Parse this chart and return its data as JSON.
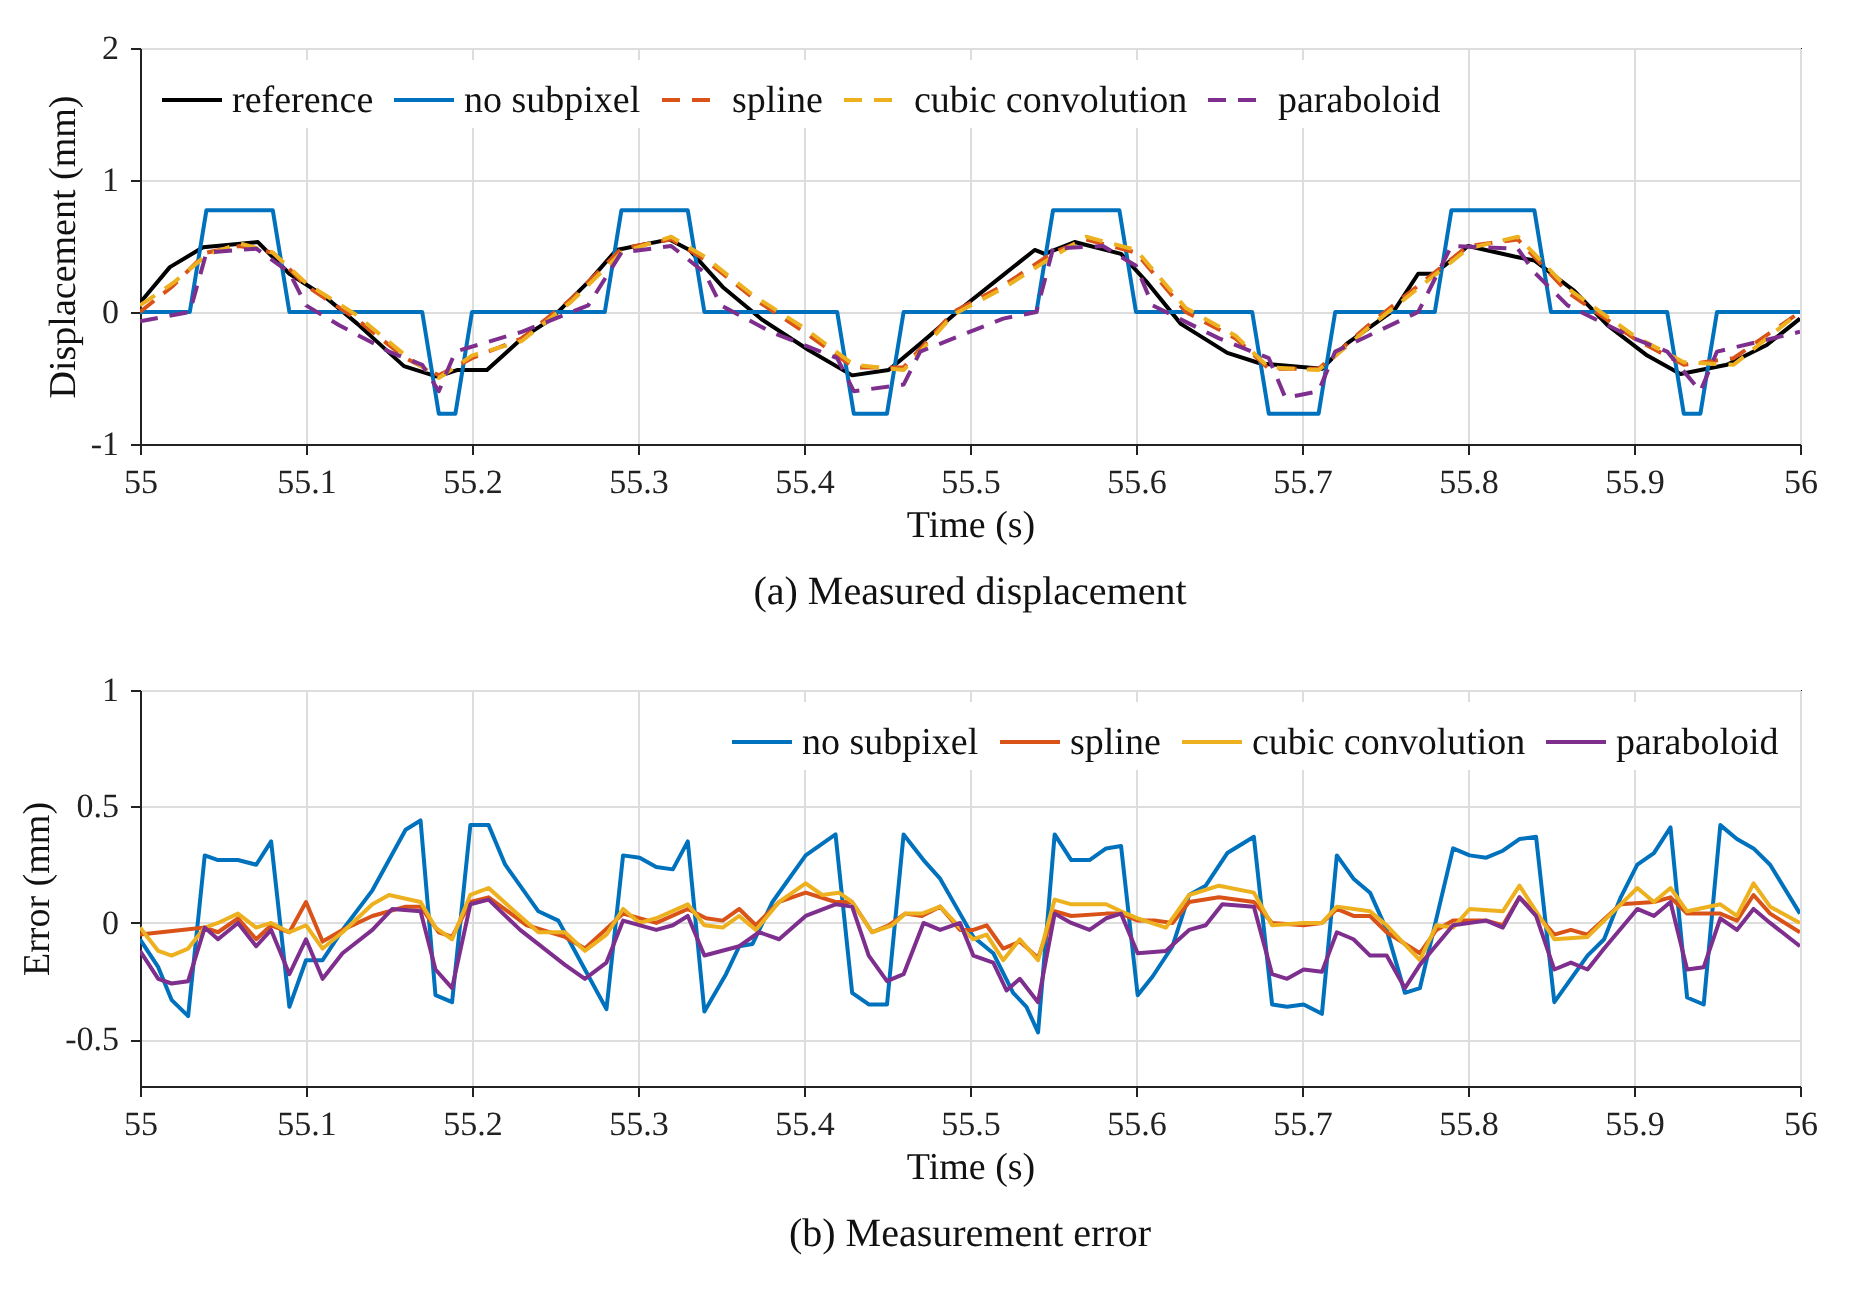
{
  "chart_data": [
    {
      "type": "line",
      "title": "(a) Measured displacement",
      "xlabel": "Time (s)",
      "ylabel": "Displacement (mm)",
      "xlim": [
        55,
        56
      ],
      "ylim": [
        -1,
        2
      ],
      "xticks": [
        55,
        55.1,
        55.2,
        55.3,
        55.4,
        55.5,
        55.6,
        55.7,
        55.8,
        55.9,
        56
      ],
      "yticks": [
        -1,
        0,
        1,
        2
      ],
      "grid": true,
      "legend": "top",
      "series": [
        {
          "name": "reference",
          "color": "#000000",
          "line_style": "solid",
          "x": [
            55,
            55.018,
            55.038,
            55.071,
            55.09,
            55.111,
            55.131,
            55.159,
            55.179,
            55.191,
            55.209,
            55.231,
            55.247,
            55.271,
            55.287,
            55.319,
            55.331,
            55.351,
            55.375,
            55.403,
            55.429,
            55.451,
            55.471,
            55.495,
            55.519,
            55.539,
            55.545,
            55.563,
            55.591,
            55.607,
            55.627,
            55.655,
            55.675,
            55.712,
            55.727,
            55.756,
            55.77,
            55.78,
            55.8,
            55.828,
            55.84,
            55.864,
            55.884,
            55.908,
            55.928,
            55.956,
            55.98,
            56
          ],
          "values": [
            0.07,
            0.34,
            0.49,
            0.53,
            0.29,
            0.12,
            -0.09,
            -0.41,
            -0.49,
            -0.44,
            -0.44,
            -0.19,
            -0.06,
            0.24,
            0.47,
            0.55,
            0.47,
            0.19,
            -0.06,
            -0.29,
            -0.48,
            -0.44,
            -0.23,
            0.03,
            0.27,
            0.47,
            0.44,
            0.53,
            0.44,
            0.22,
            -0.09,
            -0.31,
            -0.39,
            -0.43,
            -0.24,
            0.02,
            0.29,
            0.29,
            0.5,
            0.42,
            0.39,
            0.16,
            -0.1,
            -0.33,
            -0.47,
            -0.4,
            -0.25,
            -0.05
          ]
        },
        {
          "name": "no subpixel",
          "color": "#0072bd",
          "line_style": "solid",
          "x": [
            55,
            55.03,
            55.04,
            55.08,
            55.09,
            55.17,
            55.18,
            55.19,
            55.2,
            55.28,
            55.29,
            55.33,
            55.34,
            55.42,
            55.43,
            55.45,
            55.46,
            55.54,
            55.55,
            55.59,
            55.6,
            55.67,
            55.68,
            55.71,
            55.72,
            55.78,
            55.79,
            55.84,
            55.85,
            55.92,
            55.93,
            55.94,
            55.95,
            56
          ],
          "values": [
            0,
            0,
            0.77,
            0.77,
            0,
            0,
            -0.77,
            -0.77,
            0,
            0,
            0.77,
            0.77,
            0,
            0,
            -0.77,
            -0.77,
            0,
            0,
            0.77,
            0.77,
            0,
            0,
            -0.77,
            -0.77,
            0,
            0,
            0.77,
            0.77,
            0,
            0,
            -0.77,
            -0.77,
            0,
            0
          ]
        },
        {
          "name": "spline",
          "color": "#d95319",
          "line_style": "dashed",
          "x": [
            55,
            55.02,
            55.04,
            55.06,
            55.08,
            55.1,
            55.13,
            55.16,
            55.18,
            55.2,
            55.23,
            55.26,
            55.29,
            55.32,
            55.34,
            55.37,
            55.4,
            55.43,
            55.46,
            55.49,
            55.52,
            55.55,
            55.57,
            55.6,
            55.63,
            55.66,
            55.68,
            55.71,
            55.74,
            55.77,
            55.8,
            55.83,
            55.86,
            55.9,
            55.93,
            55.96,
            56
          ],
          "values": [
            0.0,
            0.2,
            0.45,
            0.5,
            0.45,
            0.2,
            -0.05,
            -0.35,
            -0.48,
            -0.35,
            -0.2,
            0.1,
            0.48,
            0.55,
            0.4,
            0.1,
            -0.15,
            -0.42,
            -0.42,
            0.0,
            0.2,
            0.45,
            0.55,
            0.45,
            0.0,
            -0.2,
            -0.43,
            -0.43,
            -0.1,
            0.2,
            0.5,
            0.55,
            0.15,
            -0.2,
            -0.4,
            -0.35,
            0.0
          ]
        },
        {
          "name": "cubic convolution",
          "color": "#edb120",
          "line_style": "dashed",
          "x": [
            55,
            55.02,
            55.04,
            55.06,
            55.08,
            55.1,
            55.13,
            55.16,
            55.18,
            55.2,
            55.23,
            55.26,
            55.29,
            55.32,
            55.34,
            55.37,
            55.4,
            55.43,
            55.46,
            55.49,
            55.52,
            55.55,
            55.57,
            55.6,
            55.63,
            55.66,
            55.68,
            55.71,
            55.74,
            55.77,
            55.8,
            55.83,
            55.86,
            55.9,
            55.93,
            55.96,
            56
          ],
          "values": [
            0.05,
            0.22,
            0.43,
            0.52,
            0.45,
            0.22,
            -0.02,
            -0.33,
            -0.5,
            -0.33,
            -0.22,
            0.08,
            0.45,
            0.57,
            0.42,
            0.12,
            -0.12,
            -0.4,
            -0.44,
            -0.02,
            0.18,
            0.42,
            0.57,
            0.47,
            0.03,
            -0.18,
            -0.42,
            -0.44,
            -0.12,
            0.18,
            0.48,
            0.57,
            0.18,
            -0.18,
            -0.38,
            -0.4,
            0.0
          ]
        },
        {
          "name": "paraboloid",
          "color": "#7e2f8e",
          "line_style": "dashed",
          "x": [
            55,
            55.03,
            55.04,
            55.07,
            55.09,
            55.1,
            55.12,
            55.15,
            55.17,
            55.18,
            55.19,
            55.23,
            55.27,
            55.29,
            55.32,
            55.34,
            55.35,
            55.38,
            55.42,
            55.43,
            55.46,
            55.47,
            55.52,
            55.54,
            55.55,
            55.58,
            55.6,
            55.61,
            55.65,
            55.68,
            55.69,
            55.71,
            55.72,
            55.77,
            55.79,
            55.83,
            55.84,
            55.86,
            55.9,
            55.92,
            55.94,
            55.95,
            56
          ],
          "values": [
            -0.07,
            0.0,
            0.45,
            0.48,
            0.3,
            0.05,
            -0.1,
            -0.3,
            -0.4,
            -0.6,
            -0.3,
            -0.15,
            0.05,
            0.45,
            0.5,
            0.3,
            0.05,
            -0.15,
            -0.35,
            -0.6,
            -0.55,
            -0.3,
            -0.05,
            0.0,
            0.48,
            0.5,
            0.35,
            0.05,
            -0.2,
            -0.35,
            -0.65,
            -0.6,
            -0.3,
            0.0,
            0.5,
            0.48,
            0.3,
            0.05,
            -0.2,
            -0.3,
            -0.6,
            -0.3,
            -0.15
          ]
        }
      ]
    },
    {
      "type": "line",
      "title": "(b) Measurement error",
      "xlabel": "Time (s)",
      "ylabel": "Error (mm)",
      "xlim": [
        55,
        56
      ],
      "ylim": [
        -0.7,
        1
      ],
      "xticks": [
        55,
        55.1,
        55.2,
        55.3,
        55.4,
        55.5,
        55.6,
        55.7,
        55.8,
        55.9,
        56
      ],
      "yticks": [
        -0.5,
        0,
        0.5,
        1
      ],
      "grid": true,
      "legend": "top right",
      "series": [
        {
          "name": "no subpixel",
          "color": "#0072bd",
          "x": [
            55,
            55.011,
            55.019,
            55.029,
            55.039,
            55.047,
            55.059,
            55.07,
            55.079,
            55.09,
            55.1,
            55.11,
            55.122,
            55.14,
            55.16,
            55.169,
            55.178,
            55.188,
            55.199,
            55.21,
            55.22,
            55.24,
            55.252,
            55.265,
            55.281,
            55.291,
            55.301,
            55.311,
            55.321,
            55.33,
            55.34,
            55.353,
            55.361,
            55.369,
            55.381,
            55.401,
            55.419,
            55.429,
            55.439,
            55.45,
            55.46,
            55.472,
            55.482,
            55.494,
            55.502,
            55.514,
            55.526,
            55.534,
            55.541,
            55.551,
            55.561,
            55.572,
            55.582,
            55.591,
            55.601,
            55.61,
            55.622,
            55.632,
            55.642,
            55.655,
            55.671,
            55.682,
            55.691,
            55.701,
            55.712,
            55.721,
            55.731,
            55.741,
            55.751,
            55.762,
            55.771,
            55.791,
            55.801,
            55.811,
            55.821,
            55.831,
            55.841,
            55.852,
            55.862,
            55.872,
            55.882,
            55.892,
            55.902,
            55.912,
            55.922,
            55.932,
            55.942,
            55.952,
            55.962,
            55.972,
            55.982,
            56
          ],
          "values": [
            -0.07,
            -0.19,
            -0.33,
            -0.4,
            0.29,
            0.27,
            0.27,
            0.25,
            0.35,
            -0.36,
            -0.16,
            -0.16,
            -0.03,
            0.14,
            0.4,
            0.44,
            -0.31,
            -0.34,
            0.42,
            0.42,
            0.25,
            0.05,
            0.01,
            -0.16,
            -0.37,
            0.29,
            0.28,
            0.24,
            0.23,
            0.35,
            -0.38,
            -0.22,
            -0.1,
            -0.09,
            0.09,
            0.29,
            0.38,
            -0.3,
            -0.35,
            -0.35,
            0.38,
            0.27,
            0.19,
            0.04,
            -0.06,
            -0.13,
            -0.3,
            -0.36,
            -0.47,
            0.38,
            0.27,
            0.27,
            0.32,
            0.33,
            -0.31,
            -0.23,
            -0.1,
            0.12,
            0.16,
            0.3,
            0.37,
            -0.35,
            -0.36,
            -0.35,
            -0.39,
            0.29,
            0.19,
            0.13,
            -0.03,
            -0.3,
            -0.28,
            0.32,
            0.29,
            0.28,
            0.31,
            0.36,
            0.37,
            -0.34,
            -0.24,
            -0.14,
            -0.07,
            0.11,
            0.25,
            0.3,
            0.41,
            -0.32,
            -0.35,
            0.42,
            0.36,
            0.32,
            0.25,
            0.04
          ]
        },
        {
          "name": "spline",
          "color": "#d95319",
          "x": [
            55,
            55.039,
            55.047,
            55.059,
            55.07,
            55.079,
            55.09,
            55.1,
            55.11,
            55.122,
            55.14,
            55.16,
            55.169,
            55.18,
            55.188,
            55.199,
            55.21,
            55.233,
            55.256,
            55.268,
            55.291,
            55.311,
            55.33,
            55.341,
            55.351,
            55.361,
            55.371,
            55.385,
            55.401,
            55.419,
            55.429,
            55.441,
            55.451,
            55.461,
            55.471,
            55.482,
            55.494,
            55.502,
            55.51,
            55.52,
            55.53,
            55.541,
            55.551,
            55.561,
            55.582,
            55.591,
            55.601,
            55.612,
            55.622,
            55.632,
            55.65,
            55.671,
            55.682,
            55.701,
            55.712,
            55.721,
            55.731,
            55.741,
            55.751,
            55.771,
            55.781,
            55.791,
            55.811,
            55.821,
            55.831,
            55.841,
            55.852,
            55.862,
            55.872,
            55.892,
            55.912,
            55.922,
            55.932,
            55.952,
            55.962,
            55.972,
            55.982,
            56
          ],
          "values": [
            -0.05,
            -0.02,
            -0.04,
            0.02,
            -0.07,
            -0.01,
            -0.04,
            0.09,
            -0.08,
            -0.03,
            0.03,
            0.07,
            0.07,
            -0.04,
            -0.06,
            0.09,
            0.11,
            -0.01,
            -0.06,
            -0.11,
            0.04,
            0.0,
            0.06,
            0.02,
            0.01,
            0.06,
            -0.01,
            0.09,
            0.13,
            0.09,
            0.09,
            -0.04,
            -0.01,
            0.04,
            0.03,
            0.07,
            -0.03,
            -0.03,
            -0.01,
            -0.11,
            -0.08,
            -0.15,
            0.05,
            0.03,
            0.04,
            0.04,
            0.01,
            0.01,
            0.0,
            0.09,
            0.11,
            0.09,
            0.0,
            -0.01,
            0.0,
            0.06,
            0.03,
            0.03,
            -0.04,
            -0.13,
            -0.03,
            0.01,
            0.01,
            -0.01,
            0.11,
            0.04,
            -0.05,
            -0.03,
            -0.05,
            0.08,
            0.09,
            0.11,
            0.04,
            0.04,
            0.01,
            0.12,
            0.04,
            -0.04
          ]
        },
        {
          "name": "cubic convolution",
          "color": "#edb120",
          "x": [
            55,
            55.011,
            55.019,
            55.029,
            55.039,
            55.047,
            55.059,
            55.07,
            55.079,
            55.09,
            55.1,
            55.11,
            55.122,
            55.14,
            55.15,
            55.169,
            55.178,
            55.188,
            55.199,
            55.21,
            55.224,
            55.24,
            55.256,
            55.268,
            55.281,
            55.291,
            55.301,
            55.311,
            55.33,
            55.34,
            55.351,
            55.361,
            55.371,
            55.385,
            55.401,
            55.411,
            55.421,
            55.429,
            55.441,
            55.453,
            55.461,
            55.471,
            55.482,
            55.494,
            55.502,
            55.51,
            55.52,
            55.53,
            55.541,
            55.551,
            55.561,
            55.582,
            55.591,
            55.601,
            55.618,
            55.632,
            55.65,
            55.671,
            55.682,
            55.701,
            55.712,
            55.721,
            55.741,
            55.751,
            55.771,
            55.781,
            55.791,
            55.801,
            55.821,
            55.831,
            55.841,
            55.852,
            55.872,
            55.892,
            55.902,
            55.912,
            55.922,
            55.932,
            55.952,
            55.962,
            55.972,
            55.982,
            56
          ],
          "values": [
            -0.02,
            -0.12,
            -0.14,
            -0.11,
            -0.02,
            0.0,
            0.04,
            -0.02,
            0.0,
            -0.04,
            -0.01,
            -0.11,
            -0.04,
            0.08,
            0.12,
            0.09,
            -0.02,
            -0.07,
            0.12,
            0.15,
            0.06,
            -0.04,
            -0.04,
            -0.12,
            -0.05,
            0.06,
            0.0,
            0.02,
            0.08,
            -0.01,
            -0.02,
            0.03,
            -0.03,
            0.09,
            0.17,
            0.12,
            0.13,
            0.09,
            -0.04,
            -0.01,
            0.04,
            0.04,
            0.07,
            -0.02,
            -0.07,
            -0.05,
            -0.16,
            -0.07,
            -0.16,
            0.1,
            0.08,
            0.08,
            0.05,
            0.02,
            -0.02,
            0.12,
            0.16,
            0.13,
            -0.01,
            0.0,
            0.0,
            0.07,
            0.05,
            -0.01,
            -0.16,
            -0.01,
            -0.02,
            0.06,
            0.05,
            0.16,
            0.05,
            -0.07,
            -0.06,
            0.08,
            0.15,
            0.09,
            0.15,
            0.05,
            0.08,
            0.03,
            0.17,
            0.07,
            0.0
          ]
        },
        {
          "name": "paraboloid",
          "color": "#7e2f8e",
          "x": [
            55,
            55.011,
            55.019,
            55.029,
            55.039,
            55.047,
            55.059,
            55.07,
            55.079,
            55.09,
            55.1,
            55.11,
            55.122,
            55.14,
            55.152,
            55.169,
            55.178,
            55.188,
            55.199,
            55.21,
            55.229,
            55.256,
            55.268,
            55.281,
            55.291,
            55.311,
            55.321,
            55.33,
            55.34,
            55.361,
            55.373,
            55.385,
            55.401,
            55.419,
            55.429,
            55.439,
            55.45,
            55.46,
            55.472,
            55.482,
            55.494,
            55.502,
            55.514,
            55.522,
            55.53,
            55.541,
            55.551,
            55.561,
            55.572,
            55.582,
            55.591,
            55.601,
            55.618,
            55.632,
            55.642,
            55.652,
            55.671,
            55.682,
            55.691,
            55.701,
            55.712,
            55.721,
            55.731,
            55.741,
            55.751,
            55.762,
            55.771,
            55.791,
            55.811,
            55.821,
            55.831,
            55.841,
            55.852,
            55.862,
            55.872,
            55.882,
            55.902,
            55.912,
            55.922,
            55.932,
            55.942,
            55.952,
            55.962,
            55.972,
            55.982,
            56
          ],
          "values": [
            -0.12,
            -0.24,
            -0.26,
            -0.25,
            -0.02,
            -0.07,
            0,
            -0.1,
            -0.03,
            -0.22,
            -0.07,
            -0.24,
            -0.13,
            -0.03,
            0.06,
            0.05,
            -0.2,
            -0.28,
            0.08,
            0.1,
            -0.03,
            -0.18,
            -0.24,
            -0.17,
            0.01,
            -0.03,
            -0.01,
            0.03,
            -0.14,
            -0.1,
            -0.04,
            -0.07,
            0.03,
            0.08,
            0.07,
            -0.14,
            -0.25,
            -0.22,
            0,
            -0.03,
            0,
            -0.14,
            -0.17,
            -0.29,
            -0.24,
            -0.34,
            0.04,
            0,
            -0.03,
            0.02,
            0.04,
            -0.13,
            -0.12,
            -0.03,
            -0.01,
            0.08,
            0.07,
            -0.22,
            -0.24,
            -0.2,
            -0.21,
            -0.04,
            -0.07,
            -0.14,
            -0.14,
            -0.28,
            -0.18,
            -0.01,
            0.01,
            -0.02,
            0.11,
            0.03,
            -0.2,
            -0.17,
            -0.2,
            -0.11,
            0.06,
            0.03,
            0.09,
            -0.2,
            -0.19,
            0.02,
            -0.03,
            0.06,
            0,
            -0.1
          ]
        }
      ]
    }
  ]
}
